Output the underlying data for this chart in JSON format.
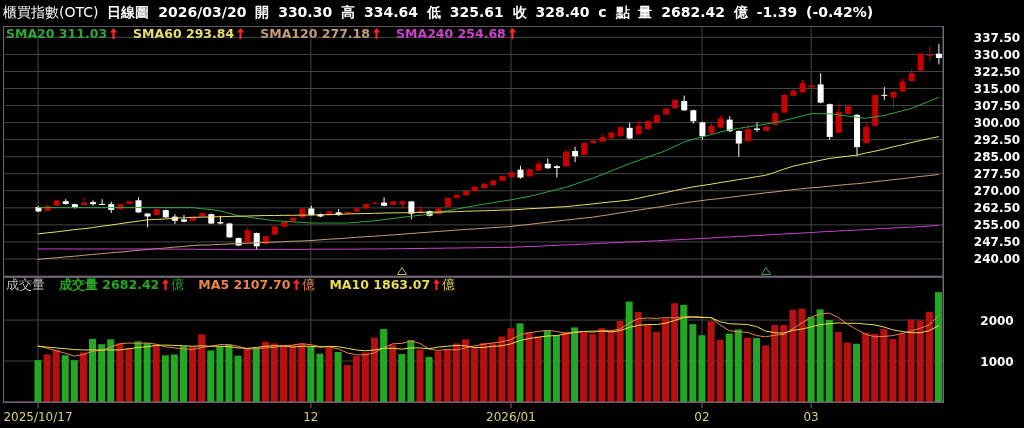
{
  "chart_data": [
    {
      "type": "candlestick",
      "title": "櫃買指數(OTC)",
      "subtitle": "日線圖 2026/03/20 開 330.30 高 334.64 低 325.61 收 328.40 c 點 量 2682.42 億 -1.39 (-0.42%)",
      "categories": [
        "2025/10/17",
        null,
        null,
        null,
        null,
        null,
        null,
        null,
        null,
        null,
        null,
        null,
        null,
        null,
        null,
        null,
        null,
        null,
        null,
        null,
        null,
        null,
        null,
        null,
        null,
        null,
        null,
        null,
        null,
        null,
        "12",
        null,
        null,
        null,
        null,
        null,
        null,
        null,
        null,
        null,
        null,
        null,
        null,
        null,
        null,
        null,
        null,
        null,
        null,
        null,
        null,
        null,
        "2026/01",
        null,
        null,
        null,
        null,
        null,
        null,
        null,
        null,
        null,
        null,
        null,
        null,
        null,
        null,
        null,
        null,
        null,
        null,
        null,
        null,
        "02",
        null,
        null,
        null,
        null,
        null,
        null,
        null,
        null,
        null,
        null,
        null,
        "03",
        null,
        null,
        null,
        null,
        null,
        null,
        null,
        null,
        null,
        null,
        null,
        null,
        null,
        null
      ],
      "ohlc": [
        [
          262.9,
          263.2,
          260.6,
          260.9
        ],
        [
          261.2,
          264.1,
          261.0,
          263.4
        ],
        [
          263.4,
          266.0,
          263.2,
          265.8
        ],
        [
          265.4,
          266.3,
          263.8,
          264.2
        ],
        [
          264.1,
          264.3,
          262.2,
          262.6
        ],
        [
          263.7,
          267.4,
          263.5,
          264.8
        ],
        [
          265.0,
          265.8,
          263.4,
          264.1
        ],
        [
          264.2,
          266.3,
          263.7,
          263.9
        ],
        [
          264.1,
          265.2,
          260.2,
          261.6
        ],
        [
          261.9,
          264.3,
          261.7,
          264.1
        ],
        [
          264.2,
          265.6,
          264.0,
          265.4
        ],
        [
          265.8,
          267.1,
          260.3,
          260.5
        ],
        [
          260.0,
          260.2,
          253.9,
          258.7
        ],
        [
          259.4,
          262.1,
          259.2,
          261.9
        ],
        [
          261.5,
          261.7,
          258.0,
          258.3
        ],
        [
          258.6,
          259.7,
          255.4,
          256.8
        ],
        [
          257.4,
          259.4,
          256.1,
          256.4
        ],
        [
          256.8,
          258.8,
          256.6,
          258.6
        ],
        [
          258.7,
          260.4,
          258.5,
          260.2
        ],
        [
          259.7,
          260.0,
          255.4,
          255.6
        ],
        [
          256.2,
          259.0,
          255.3,
          255.6
        ],
        [
          255.6,
          255.8,
          249.3,
          249.5
        ],
        [
          249.2,
          249.4,
          245.6,
          245.9
        ],
        [
          247.1,
          253.9,
          246.8,
          252.7
        ],
        [
          251.4,
          251.6,
          244.2,
          245.6
        ],
        [
          246.6,
          250.2,
          246.3,
          250.0
        ],
        [
          250.7,
          254.6,
          250.5,
          254.3
        ],
        [
          254.2,
          256.7,
          254.0,
          256.4
        ],
        [
          256.6,
          258.4,
          256.4,
          258.2
        ],
        [
          258.3,
          262.5,
          258.1,
          262.2
        ],
        [
          262.2,
          263.4,
          259.2,
          259.4
        ],
        [
          259.7,
          260.0,
          258.4,
          258.7
        ],
        [
          259.3,
          261.3,
          259.0,
          261.0
        ],
        [
          260.5,
          261.9,
          259.0,
          259.3
        ],
        [
          260.0,
          260.9,
          259.8,
          260.7
        ],
        [
          260.9,
          262.4,
          260.7,
          262.2
        ],
        [
          262.2,
          264.5,
          262.0,
          264.2
        ],
        [
          264.3,
          265.0,
          264.1,
          264.8
        ],
        [
          264.8,
          267.1,
          263.2,
          263.4
        ],
        [
          263.8,
          265.6,
          263.6,
          265.4
        ],
        [
          264.2,
          265.8,
          262.2,
          265.3
        ],
        [
          265.3,
          265.5,
          257.5,
          259.9
        ],
        [
          260.2,
          263.4,
          260.0,
          261.3
        ],
        [
          261.0,
          261.3,
          258.7,
          259.0
        ],
        [
          259.7,
          262.5,
          259.5,
          262.2
        ],
        [
          262.9,
          267.1,
          262.7,
          266.9
        ],
        [
          266.9,
          268.5,
          266.7,
          268.2
        ],
        [
          268.0,
          270.2,
          267.8,
          269.9
        ],
        [
          269.9,
          272.1,
          269.7,
          271.8
        ],
        [
          271.2,
          273.4,
          271.0,
          273.1
        ],
        [
          272.4,
          274.9,
          272.2,
          274.6
        ],
        [
          274.4,
          276.8,
          274.2,
          276.5
        ],
        [
          276.0,
          278.5,
          275.8,
          278.2
        ],
        [
          279.3,
          281.0,
          275.4,
          275.8
        ],
        [
          276.3,
          279.7,
          276.0,
          279.5
        ],
        [
          278.9,
          283.1,
          278.6,
          281.9
        ],
        [
          281.9,
          284.2,
          279.6,
          279.9
        ],
        [
          280.8,
          281.3,
          275.8,
          280.0
        ],
        [
          280.7,
          288.0,
          280.4,
          287.2
        ],
        [
          287.5,
          289.3,
          282.6,
          285.2
        ],
        [
          285.8,
          291.3,
          285.6,
          291.0
        ],
        [
          291.0,
          292.8,
          290.8,
          292.1
        ],
        [
          291.6,
          294.8,
          291.4,
          293.6
        ],
        [
          293.1,
          296.0,
          292.9,
          295.7
        ],
        [
          294.0,
          298.2,
          293.8,
          298.0
        ],
        [
          297.7,
          300.0,
          292.7,
          293.0
        ],
        [
          294.8,
          300.7,
          294.5,
          298.6
        ],
        [
          297.1,
          301.0,
          296.8,
          300.7
        ],
        [
          300.0,
          303.6,
          299.7,
          303.3
        ],
        [
          303.6,
          306.5,
          303.4,
          306.2
        ],
        [
          306.3,
          310.3,
          306.1,
          310.0
        ],
        [
          309.5,
          311.9,
          305.1,
          305.4
        ],
        [
          305.4,
          305.7,
          299.6,
          300.6
        ],
        [
          300.1,
          300.4,
          292.5,
          294.0
        ],
        [
          295.2,
          300.1,
          294.9,
          298.6
        ],
        [
          297.8,
          303.1,
          297.5,
          301.9
        ],
        [
          301.3,
          302.8,
          295.9,
          296.2
        ],
        [
          296.3,
          296.6,
          284.9,
          290.8
        ],
        [
          291.8,
          299.3,
          291.5,
          297.1
        ],
        [
          297.4,
          300.1,
          295.9,
          296.8
        ],
        [
          296.3,
          298.6,
          296.0,
          298.3
        ],
        [
          299.0,
          305.1,
          298.8,
          304.2
        ],
        [
          304.4,
          312.5,
          304.1,
          312.2
        ],
        [
          311.8,
          315.0,
          311.5,
          314.1
        ],
        [
          313.3,
          318.8,
          313.0,
          317.3
        ],
        [
          315.6,
          319.1,
          308.5,
          316.5
        ],
        [
          316.8,
          321.7,
          308.5,
          308.8
        ],
        [
          308.1,
          308.4,
          292.5,
          293.7
        ],
        [
          295.5,
          308.5,
          295.3,
          304.7
        ],
        [
          303.9,
          308.1,
          303.6,
          307.2
        ],
        [
          303.4,
          303.7,
          285.2,
          289.2
        ],
        [
          291.0,
          300.1,
          290.7,
          298.1
        ],
        [
          298.6,
          312.5,
          298.3,
          312.2
        ],
        [
          312.2,
          315.6,
          310.0,
          311.8
        ],
        [
          311.0,
          314.1,
          306.2,
          313.5
        ],
        [
          313.8,
          319.4,
          313.5,
          318.0
        ],
        [
          318.3,
          323.6,
          318.0,
          321.8
        ],
        [
          322.9,
          330.6,
          322.6,
          330.3
        ],
        [
          329.2,
          333.5,
          327.0,
          329.8
        ],
        [
          330.3,
          334.64,
          325.61,
          328.4
        ]
      ],
      "colors": [
        "#ffffff",
        "#c80000",
        "#c80000",
        "#ffffff",
        "#ffffff",
        "#c80000",
        "#ffffff",
        "#ffffff",
        "#ffffff",
        "#c80000",
        "#c80000",
        "#ffffff",
        "#ffffff",
        "#c80000",
        "#ffffff",
        "#ffffff",
        "#ffffff",
        "#c80000",
        "#c80000",
        "#ffffff",
        "#ffffff",
        "#ffffff",
        "#ffffff",
        "#c80000",
        "#ffffff",
        "#c80000",
        "#c80000",
        "#c80000",
        "#c80000",
        "#c80000",
        "#ffffff",
        "#ffffff",
        "#c80000",
        "#ffffff",
        "#c80000",
        "#c80000",
        "#c80000",
        "#c80000",
        "#ffffff",
        "#c80000",
        "#c80000",
        "#ffffff",
        "#c80000",
        "#ffffff",
        "#c80000",
        "#c80000",
        "#c80000",
        "#c80000",
        "#c80000",
        "#c80000",
        "#c80000",
        "#c80000",
        "#c80000",
        "#ffffff",
        "#c80000",
        "#c80000",
        "#ffffff",
        "#ffffff",
        "#c80000",
        "#ffffff",
        "#c80000",
        "#c80000",
        "#c80000",
        "#c80000",
        "#c80000",
        "#ffffff",
        "#c80000",
        "#c80000",
        "#c80000",
        "#c80000",
        "#c80000",
        "#ffffff",
        "#ffffff",
        "#ffffff",
        "#c80000",
        "#c80000",
        "#ffffff",
        "#ffffff",
        "#c80000",
        "#ffffff",
        "#c80000",
        "#c80000",
        "#c80000",
        "#c80000",
        "#c80000",
        "#c80000",
        "#ffffff",
        "#ffffff",
        "#c80000",
        "#c80000",
        "#ffffff",
        "#c80000",
        "#c80000",
        "#ffffff",
        "#c80000",
        "#c80000",
        "#c80000",
        "#c80000",
        "#c80000",
        "#ffffff"
      ],
      "series": [
        {
          "name": "SMA20 311.03",
          "type": "line",
          "color": "#30a838",
          "values": [
            262.6,
            262.6,
            262.6,
            262.6,
            262.6,
            262.6,
            262.6,
            262.6,
            262.6,
            262.6,
            262.6,
            262.6,
            262.6,
            262.6,
            262.6,
            262.6,
            262.6,
            262.6,
            262.1,
            261.7,
            261.2,
            260.1,
            259.0,
            258.5,
            257.9,
            257.4,
            256.8,
            256.6,
            256.3,
            256.1,
            255.8,
            255.8,
            255.8,
            255.8,
            255.8,
            256.1,
            256.5,
            256.8,
            257.3,
            257.8,
            258.3,
            258.8,
            259.2,
            259.7,
            260.5,
            261.2,
            261.9,
            262.7,
            263.4,
            264.1,
            264.7,
            265.4,
            266.0,
            266.8,
            267.5,
            268.5,
            269.5,
            270.5,
            271.5,
            272.8,
            274.2,
            275.5,
            277.1,
            278.7,
            280.3,
            281.9,
            283.3,
            284.8,
            286.2,
            287.6,
            289.5,
            291.4,
            292.6,
            293.7,
            294.7,
            295.8,
            296.8,
            297.4,
            298.1,
            298.7,
            299.3,
            300.1,
            300.9,
            301.9,
            302.9,
            303.9,
            303.9,
            303.9,
            303.4,
            302.9,
            302.4,
            301.9,
            302.5,
            303.1,
            304.1,
            305.2,
            306.2,
            307.8,
            309.4,
            311.0
          ]
        },
        {
          "name": "SMA60 293.84",
          "type": "line",
          "color": "#e6de6a",
          "values": [
            251.0,
            251.5,
            251.9,
            252.4,
            252.9,
            253.3,
            253.8,
            254.4,
            254.9,
            255.5,
            256.1,
            256.6,
            257.2,
            257.4,
            257.6,
            257.9,
            258.1,
            258.3,
            258.4,
            258.5,
            258.6,
            258.7,
            258.8,
            258.9,
            259.0,
            259.1,
            259.1,
            259.2,
            259.2,
            259.3,
            259.3,
            259.4,
            259.5,
            259.6,
            259.8,
            259.9,
            260.0,
            260.1,
            260.2,
            260.3,
            260.3,
            260.4,
            260.5,
            260.6,
            260.6,
            260.7,
            260.8,
            261.0,
            261.1,
            261.2,
            261.3,
            261.5,
            261.6,
            261.8,
            262.1,
            262.3,
            262.5,
            262.8,
            263.0,
            263.4,
            263.8,
            264.2,
            264.7,
            265.1,
            265.5,
            265.9,
            266.7,
            267.6,
            268.4,
            269.2,
            270.1,
            270.9,
            271.7,
            272.3,
            272.9,
            273.6,
            274.2,
            274.9,
            275.5,
            276.2,
            276.8,
            278.1,
            279.5,
            280.8,
            281.7,
            282.5,
            283.4,
            284.2,
            284.7,
            285.2,
            285.7,
            286.6,
            287.4,
            288.3,
            289.3,
            290.2,
            291.2,
            292.1,
            293.0,
            293.8
          ]
        },
        {
          "name": "SMA120 277.18",
          "type": "line",
          "color": "#c49c76",
          "values": [
            239.8,
            240.2,
            240.5,
            240.9,
            241.2,
            241.6,
            242.0,
            242.3,
            242.7,
            243.0,
            243.4,
            243.8,
            244.1,
            244.5,
            244.8,
            245.2,
            245.5,
            245.9,
            246.1,
            246.2,
            246.4,
            246.6,
            246.8,
            246.9,
            247.1,
            247.3,
            247.4,
            247.6,
            247.8,
            247.9,
            248.1,
            248.4,
            248.7,
            248.9,
            249.2,
            249.5,
            249.8,
            250.0,
            250.3,
            250.6,
            250.9,
            251.2,
            251.5,
            251.8,
            252.1,
            252.4,
            252.7,
            253.0,
            253.2,
            253.5,
            253.8,
            254.0,
            254.3,
            254.8,
            255.2,
            255.7,
            256.1,
            256.6,
            257.1,
            257.5,
            258.0,
            258.4,
            259.0,
            259.6,
            260.3,
            260.9,
            261.5,
            262.1,
            262.7,
            263.3,
            264.0,
            264.6,
            265.2,
            265.7,
            266.2,
            266.6,
            267.1,
            267.6,
            268.1,
            268.6,
            269.1,
            269.5,
            270.0,
            270.5,
            270.9,
            271.3,
            271.6,
            272.0,
            272.4,
            272.8,
            273.1,
            273.5,
            274.0,
            274.4,
            274.9,
            275.3,
            275.8,
            276.3,
            276.7,
            277.2
          ]
        },
        {
          "name": "SMA240 254.68",
          "type": "line",
          "color": "#cc40cc",
          "values": [
            244.4,
            244.4,
            244.4,
            244.4,
            244.4,
            244.4,
            244.4,
            244.4,
            244.4,
            244.4,
            244.4,
            244.4,
            244.4,
            244.4,
            244.3,
            244.3,
            244.3,
            244.3,
            244.2,
            244.2,
            244.2,
            244.1,
            244.1,
            244.1,
            244.1,
            244.2,
            244.2,
            244.2,
            244.2,
            244.2,
            244.3,
            244.3,
            244.3,
            244.3,
            244.3,
            244.3,
            244.4,
            244.4,
            244.4,
            244.5,
            244.5,
            244.6,
            244.6,
            244.7,
            244.7,
            244.8,
            244.8,
            244.9,
            244.9,
            245.0,
            245.0,
            245.1,
            245.1,
            245.3,
            245.5,
            245.6,
            245.8,
            246.0,
            246.2,
            246.3,
            246.5,
            246.7,
            246.9,
            247.1,
            247.3,
            247.5,
            247.6,
            247.8,
            248.0,
            248.2,
            248.4,
            248.6,
            248.8,
            249.0,
            249.2,
            249.5,
            249.7,
            249.9,
            250.1,
            250.3,
            250.5,
            250.8,
            251.0,
            251.2,
            251.4,
            251.6,
            251.9,
            252.1,
            252.3,
            252.5,
            252.7,
            252.9,
            253.2,
            253.4,
            253.6,
            253.8,
            254.0,
            254.2,
            254.5,
            254.7
          ]
        }
      ],
      "ylim": [
        232.5,
        342.5
      ],
      "yticks": [
        {
          "value": 240,
          "label": "240.00"
        },
        {
          "value": 247.5,
          "label": "247.50"
        },
        {
          "value": 255,
          "label": "255.00"
        },
        {
          "value": 262.5,
          "label": "262.50"
        },
        {
          "value": 270,
          "label": "270.00"
        },
        {
          "value": 277.5,
          "label": "277.50"
        },
        {
          "value": 285,
          "label": "285.00"
        },
        {
          "value": 292.5,
          "label": "292.50"
        },
        {
          "value": 300,
          "label": "300.00"
        },
        {
          "value": 307.5,
          "label": "307.50"
        },
        {
          "value": 315,
          "label": "315.00"
        },
        {
          "value": 322.5,
          "label": "322.50"
        },
        {
          "value": 330,
          "label": "330.00"
        },
        {
          "value": 337.5,
          "label": "337.50"
        }
      ],
      "grid": true,
      "legend": "top left",
      "tick_labels": "y"
    },
    {
      "type": "bar",
      "title": "成交量",
      "ylabel": "億",
      "categories": [
        "2025/10/17",
        null,
        null,
        null,
        null,
        null,
        null,
        null,
        null,
        null,
        null,
        null,
        null,
        null,
        null,
        null,
        null,
        null,
        null,
        null,
        null,
        null,
        null,
        null,
        null,
        null,
        null,
        null,
        null,
        null,
        "12",
        null,
        null,
        null,
        null,
        null,
        null,
        null,
        null,
        null,
        null,
        null,
        null,
        null,
        null,
        null,
        null,
        null,
        null,
        null,
        null,
        null,
        "2026/01",
        null,
        null,
        null,
        null,
        null,
        null,
        null,
        null,
        null,
        null,
        null,
        null,
        null,
        null,
        null,
        null,
        null,
        null,
        null,
        null,
        "02",
        null,
        null,
        null,
        null,
        null,
        null,
        null,
        null,
        null,
        null,
        null,
        "03",
        null,
        null,
        null,
        null,
        null,
        null,
        null,
        null,
        null,
        null,
        null,
        null,
        null,
        null
      ],
      "series": [
        {
          "name": "成交量 2682.42",
          "colors": [
            "#22a822",
            "#b81010",
            "#b81010",
            "#22a822",
            "#22a822",
            "#b81010",
            "#22a822",
            "#22a822",
            "#22a822",
            "#b81010",
            "#b81010",
            "#22a822",
            "#22a822",
            "#b81010",
            "#22a822",
            "#22a822",
            "#22a822",
            "#b81010",
            "#b81010",
            "#22a822",
            "#22a822",
            "#22a822",
            "#22a822",
            "#b81010",
            "#22a822",
            "#b81010",
            "#b81010",
            "#b81010",
            "#b81010",
            "#b81010",
            "#22a822",
            "#22a822",
            "#b81010",
            "#22a822",
            "#b81010",
            "#b81010",
            "#b81010",
            "#b81010",
            "#22a822",
            "#b81010",
            "#22a822",
            "#22a822",
            "#b81010",
            "#22a822",
            "#b81010",
            "#b81010",
            "#b81010",
            "#b81010",
            "#b81010",
            "#b81010",
            "#b81010",
            "#b81010",
            "#b81010",
            "#22a822",
            "#b81010",
            "#b81010",
            "#22a822",
            "#22a822",
            "#b81010",
            "#22a822",
            "#b81010",
            "#b81010",
            "#b81010",
            "#b81010",
            "#b81010",
            "#22a822",
            "#b81010",
            "#b81010",
            "#b81010",
            "#b81010",
            "#b81010",
            "#22a822",
            "#22a822",
            "#22a822",
            "#b81010",
            "#b81010",
            "#22a822",
            "#22a822",
            "#b81010",
            "#22a822",
            "#b81010",
            "#b81010",
            "#b81010",
            "#b81010",
            "#b81010",
            "#22a822",
            "#22a822",
            "#22a822",
            "#b81010",
            "#b81010",
            "#22a822",
            "#b81010",
            "#b81010",
            "#b81010",
            "#b81010",
            "#b81010",
            "#b81010",
            "#b81010",
            "#b81010",
            "#22a822"
          ],
          "values": [
            1020,
            1160,
            1270,
            1140,
            1020,
            1210,
            1540,
            1410,
            1530,
            1430,
            1310,
            1480,
            1440,
            1400,
            1140,
            1160,
            1360,
            1350,
            1650,
            1260,
            1360,
            1400,
            1130,
            1290,
            1310,
            1470,
            1430,
            1370,
            1390,
            1430,
            1360,
            1180,
            1320,
            1220,
            900,
            1120,
            1210,
            1570,
            1780,
            1400,
            1170,
            1510,
            1280,
            1100,
            1240,
            1290,
            1430,
            1530,
            1350,
            1440,
            1430,
            1600,
            1800,
            1920,
            1700,
            1600,
            1740,
            1630,
            1710,
            1820,
            1700,
            1660,
            1800,
            1740,
            1980,
            2450,
            2200,
            1880,
            1710,
            2040,
            2410,
            2370,
            1900,
            1630,
            1970,
            1520,
            1670,
            1770,
            1570,
            1560,
            1380,
            1880,
            1880,
            2250,
            2280,
            2070,
            2260,
            2000,
            1710,
            1450,
            1420,
            1690,
            1660,
            1780,
            1540,
            1660,
            2010,
            1990,
            2200,
            2680
          ]
        },
        {
          "name": "MA5 2107.70",
          "type": "line",
          "color": "#e8844c",
          "values": [
            1370,
            1310,
            1250,
            1190,
            1120,
            1160,
            1240,
            1260,
            1340,
            1420,
            1440,
            1430,
            1440,
            1410,
            1350,
            1320,
            1300,
            1280,
            1330,
            1360,
            1400,
            1400,
            1360,
            1290,
            1300,
            1320,
            1330,
            1370,
            1390,
            1420,
            1400,
            1350,
            1340,
            1300,
            1200,
            1150,
            1150,
            1200,
            1320,
            1420,
            1430,
            1490,
            1430,
            1290,
            1260,
            1280,
            1270,
            1320,
            1370,
            1410,
            1440,
            1470,
            1520,
            1640,
            1690,
            1720,
            1750,
            1720,
            1680,
            1700,
            1720,
            1700,
            1740,
            1740,
            1780,
            1930,
            2030,
            2050,
            2040,
            2060,
            2050,
            2080,
            2090,
            2070,
            2060,
            1880,
            1740,
            1710,
            1700,
            1620,
            1590,
            1630,
            1650,
            1790,
            1930,
            2070,
            2150,
            2170,
            2060,
            1900,
            1770,
            1650,
            1590,
            1600,
            1620,
            1670,
            1730,
            1800,
            1880,
            2110
          ]
        },
        {
          "name": "MA10 1863.07",
          "type": "line",
          "color": "#eadc4c",
          "values": [
            1360,
            1340,
            1320,
            1300,
            1280,
            1270,
            1270,
            1270,
            1270,
            1270,
            1300,
            1330,
            1350,
            1380,
            1390,
            1380,
            1370,
            1360,
            1370,
            1360,
            1360,
            1350,
            1320,
            1310,
            1330,
            1360,
            1370,
            1370,
            1340,
            1360,
            1360,
            1340,
            1360,
            1350,
            1310,
            1270,
            1250,
            1270,
            1310,
            1310,
            1290,
            1320,
            1320,
            1300,
            1340,
            1360,
            1380,
            1370,
            1330,
            1330,
            1360,
            1370,
            1420,
            1500,
            1550,
            1580,
            1610,
            1620,
            1660,
            1700,
            1720,
            1730,
            1730,
            1710,
            1740,
            1820,
            1870,
            1890,
            1890,
            1920,
            1990,
            2060,
            2070,
            2060,
            2060,
            1960,
            1910,
            1900,
            1890,
            1840,
            1730,
            1690,
            1680,
            1750,
            1780,
            1830,
            1890,
            1910,
            1930,
            1920,
            1920,
            1900,
            1880,
            1830,
            1760,
            1720,
            1690,
            1690,
            1740,
            1860
          ]
        }
      ],
      "ylim": [
        0,
        3050
      ],
      "yticks": [
        1000,
        2000
      ],
      "grid": true,
      "legend": "top left"
    }
  ]
}
